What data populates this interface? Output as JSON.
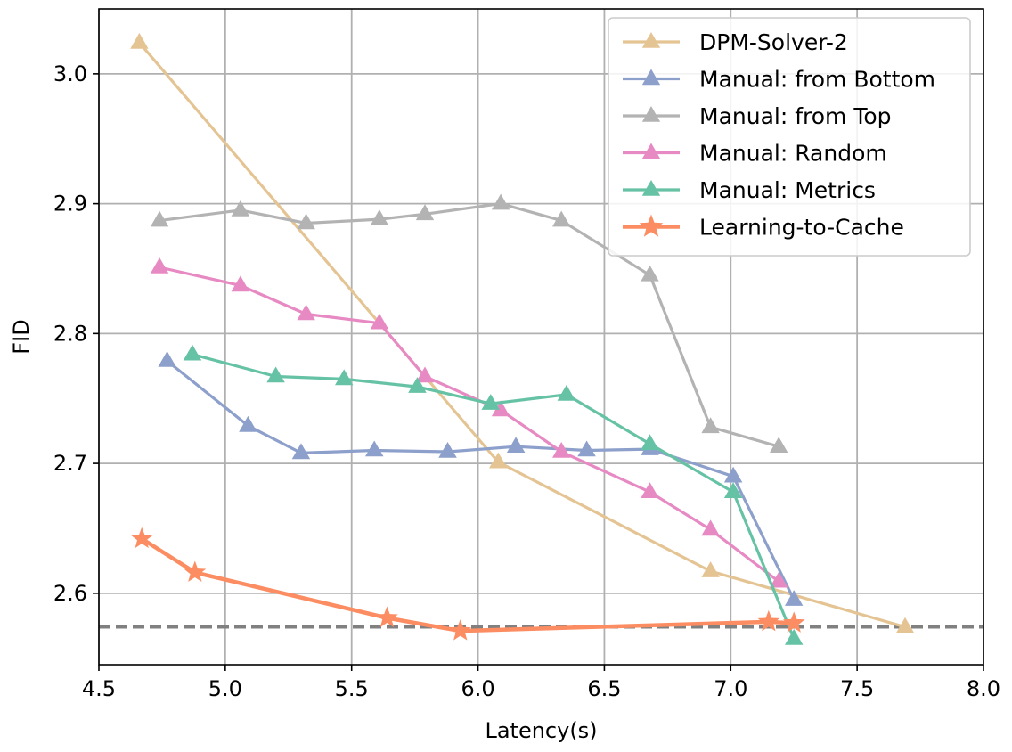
{
  "chart_data": {
    "type": "line",
    "title": "",
    "xlabel": "Latency(s)",
    "ylabel": "FID",
    "xlim": [
      4.5,
      8.0
    ],
    "ylim": [
      2.545,
      3.05
    ],
    "xticks": [
      4.5,
      5.0,
      5.5,
      6.0,
      6.5,
      7.0,
      7.5,
      8.0
    ],
    "xtick_labels": [
      "4.5",
      "5.0",
      "5.5",
      "6.0",
      "6.5",
      "7.0",
      "7.5",
      "8.0"
    ],
    "yticks": [
      2.6,
      2.7,
      2.8,
      2.9,
      3.0
    ],
    "ytick_labels": [
      "2.6",
      "2.7",
      "2.8",
      "2.9",
      "3.0"
    ],
    "grid": true,
    "legend_position": "top-right",
    "reference_line": {
      "y": 2.574,
      "style": "dashed",
      "color": "#808080"
    },
    "series": [
      {
        "name": "DPM-Solver-2",
        "color": "#E5C494",
        "marker": "triangle",
        "x": [
          4.66,
          6.08,
          6.92,
          7.69
        ],
        "y": [
          3.024,
          2.701,
          2.617,
          2.574
        ]
      },
      {
        "name": "Manual: from Bottom",
        "color": "#8DA0CB",
        "marker": "triangle",
        "x": [
          4.77,
          5.09,
          5.3,
          5.59,
          5.88,
          6.15,
          6.43,
          6.68,
          7.01,
          7.25
        ],
        "y": [
          2.779,
          2.729,
          2.708,
          2.71,
          2.709,
          2.713,
          2.71,
          2.711,
          2.69,
          2.595
        ]
      },
      {
        "name": "Manual: from Top",
        "color": "#B3B3B3",
        "marker": "triangle",
        "x": [
          4.74,
          5.06,
          5.32,
          5.61,
          5.79,
          6.09,
          6.33,
          6.68,
          6.92,
          7.19
        ],
        "y": [
          2.887,
          2.895,
          2.885,
          2.888,
          2.892,
          2.9,
          2.887,
          2.845,
          2.728,
          2.713
        ]
      },
      {
        "name": "Manual: Random",
        "color": "#E78AC3",
        "marker": "triangle",
        "x": [
          4.74,
          5.06,
          5.32,
          5.61,
          5.79,
          6.09,
          6.33,
          6.68,
          6.92,
          7.19
        ],
        "y": [
          2.851,
          2.837,
          2.815,
          2.808,
          2.767,
          2.741,
          2.709,
          2.678,
          2.649,
          2.609
        ]
      },
      {
        "name": "Manual: Metrics",
        "color": "#66C2A5",
        "marker": "triangle",
        "x": [
          4.87,
          5.2,
          5.47,
          5.76,
          6.05,
          6.35,
          6.68,
          7.01,
          7.25
        ],
        "y": [
          2.784,
          2.767,
          2.765,
          2.759,
          2.746,
          2.753,
          2.715,
          2.678,
          2.565
        ]
      },
      {
        "name": "Learning-to-Cache",
        "color": "#FC8D62",
        "marker": "star",
        "x": [
          4.67,
          4.88,
          5.64,
          5.93,
          7.15,
          7.25
        ],
        "y": [
          2.642,
          2.616,
          2.581,
          2.571,
          2.578,
          2.577
        ]
      }
    ]
  }
}
